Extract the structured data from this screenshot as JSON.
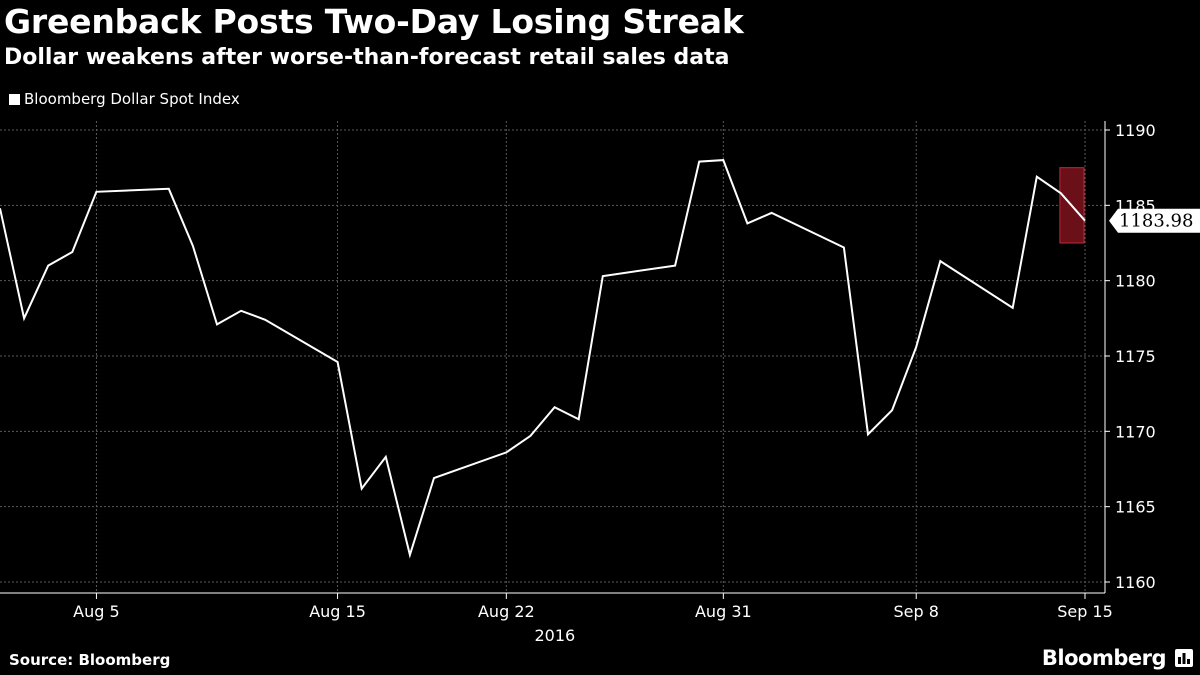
{
  "title": "Greenback Posts Two-Day Losing Streak",
  "subtitle": "Dollar weakens after worse-than-forecast retail sales data",
  "source": "Source: Bloomberg",
  "brand": "Bloomberg",
  "colors": {
    "background": "#000000",
    "line": "#ffffff",
    "grid": "#5a5a5a",
    "highlight_fill": "#6b0f18",
    "highlight_stroke": "#c0283a",
    "callout_bg": "#ffffff"
  },
  "chart_data": {
    "type": "line",
    "title": "Greenback Posts Two-Day Losing Streak",
    "subtitle": "Dollar weakens after worse-than-forecast retail sales data",
    "xlabel": "2016",
    "ylabel": "",
    "x_ticks": [
      "Aug 5",
      "Aug 15",
      "Aug 22",
      "Aug 31",
      "Sep 8",
      "Sep 15"
    ],
    "y_ticks": [
      1160,
      1165,
      1170,
      1175,
      1180,
      1185,
      1190
    ],
    "ylim": [
      1160,
      1190
    ],
    "xlim": [
      "2016-08-01",
      "2016-09-15"
    ],
    "grid": true,
    "y_axis_side": "right",
    "legend": "top-left",
    "series": [
      {
        "name": "Bloomberg Dollar Spot Index",
        "color": "#ffffff",
        "points": [
          {
            "x": "2016-08-01",
            "y": 1184.8
          },
          {
            "x": "2016-08-02",
            "y": 1177.5
          },
          {
            "x": "2016-08-03",
            "y": 1181.0
          },
          {
            "x": "2016-08-04",
            "y": 1181.9
          },
          {
            "x": "2016-08-05",
            "y": 1185.9
          },
          {
            "x": "2016-08-08",
            "y": 1186.1
          },
          {
            "x": "2016-08-09",
            "y": 1182.3
          },
          {
            "x": "2016-08-10",
            "y": 1177.1
          },
          {
            "x": "2016-08-11",
            "y": 1178.0
          },
          {
            "x": "2016-08-12",
            "y": 1177.4
          },
          {
            "x": "2016-08-15",
            "y": 1174.6
          },
          {
            "x": "2016-08-16",
            "y": 1166.2
          },
          {
            "x": "2016-08-17",
            "y": 1168.3
          },
          {
            "x": "2016-08-18",
            "y": 1161.8
          },
          {
            "x": "2016-08-19",
            "y": 1166.9
          },
          {
            "x": "2016-08-22",
            "y": 1168.6
          },
          {
            "x": "2016-08-23",
            "y": 1169.7
          },
          {
            "x": "2016-08-24",
            "y": 1171.6
          },
          {
            "x": "2016-08-25",
            "y": 1170.8
          },
          {
            "x": "2016-08-26",
            "y": 1180.3
          },
          {
            "x": "2016-08-29",
            "y": 1181.0
          },
          {
            "x": "2016-08-30",
            "y": 1187.9
          },
          {
            "x": "2016-08-31",
            "y": 1188.0
          },
          {
            "x": "2016-09-01",
            "y": 1183.8
          },
          {
            "x": "2016-09-02",
            "y": 1184.5
          },
          {
            "x": "2016-09-05",
            "y": 1182.2
          },
          {
            "x": "2016-09-06",
            "y": 1169.8
          },
          {
            "x": "2016-09-07",
            "y": 1171.4
          },
          {
            "x": "2016-09-08",
            "y": 1175.6
          },
          {
            "x": "2016-09-09",
            "y": 1181.3
          },
          {
            "x": "2016-09-12",
            "y": 1178.2
          },
          {
            "x": "2016-09-13",
            "y": 1186.9
          },
          {
            "x": "2016-09-14",
            "y": 1185.8
          },
          {
            "x": "2016-09-15",
            "y": 1183.98
          }
        ]
      }
    ],
    "highlight": {
      "x_from": "2016-09-14",
      "x_to": "2016-09-15",
      "y_from": 1182.5,
      "y_to": 1187.5
    },
    "last_value_label": "1183.98"
  }
}
